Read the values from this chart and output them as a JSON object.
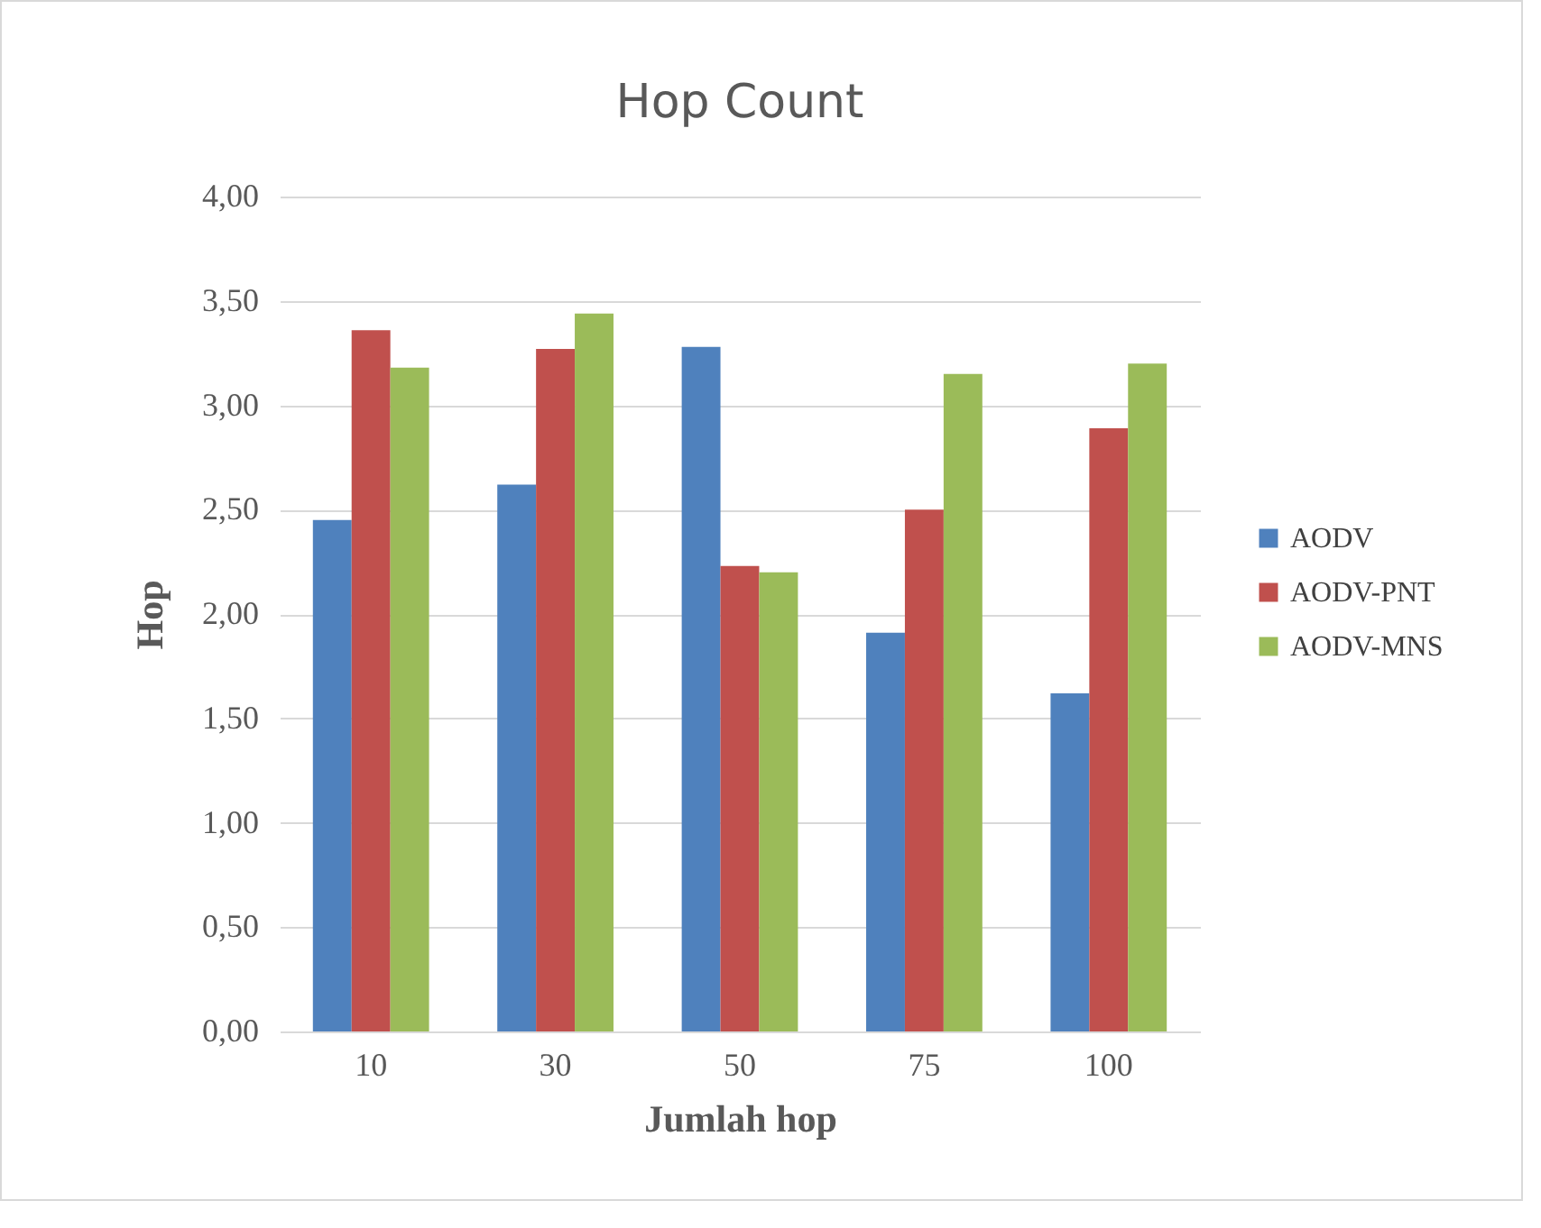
{
  "chart_data": {
    "type": "bar",
    "title": "Hop Count",
    "xlabel": "Jumlah hop",
    "ylabel": "Hop",
    "categories": [
      "10",
      "30",
      "50",
      "75",
      "100"
    ],
    "series": [
      {
        "name": "AODV",
        "color": "#4f81bd",
        "values": [
          2.45,
          2.62,
          3.28,
          1.91,
          1.62
        ]
      },
      {
        "name": "AODV-PNT",
        "color": "#c0504d",
        "values": [
          3.36,
          3.27,
          2.23,
          2.5,
          2.89
        ]
      },
      {
        "name": "AODV-MNS",
        "color": "#9bbb59",
        "values": [
          3.18,
          3.44,
          2.2,
          3.15,
          3.2
        ]
      }
    ],
    "ylim": [
      0,
      4
    ],
    "yticks": [
      {
        "value": 0,
        "label": "0,00"
      },
      {
        "value": 0.5,
        "label": "0,50"
      },
      {
        "value": 1,
        "label": "1,00"
      },
      {
        "value": 1.5,
        "label": "1,50"
      },
      {
        "value": 2,
        "label": "2,00"
      },
      {
        "value": 2.5,
        "label": "2,50"
      },
      {
        "value": 3,
        "label": "3,00"
      },
      {
        "value": 3.5,
        "label": "3,50"
      },
      {
        "value": 4,
        "label": "4,00"
      }
    ],
    "grid": "y",
    "legend": "right"
  }
}
